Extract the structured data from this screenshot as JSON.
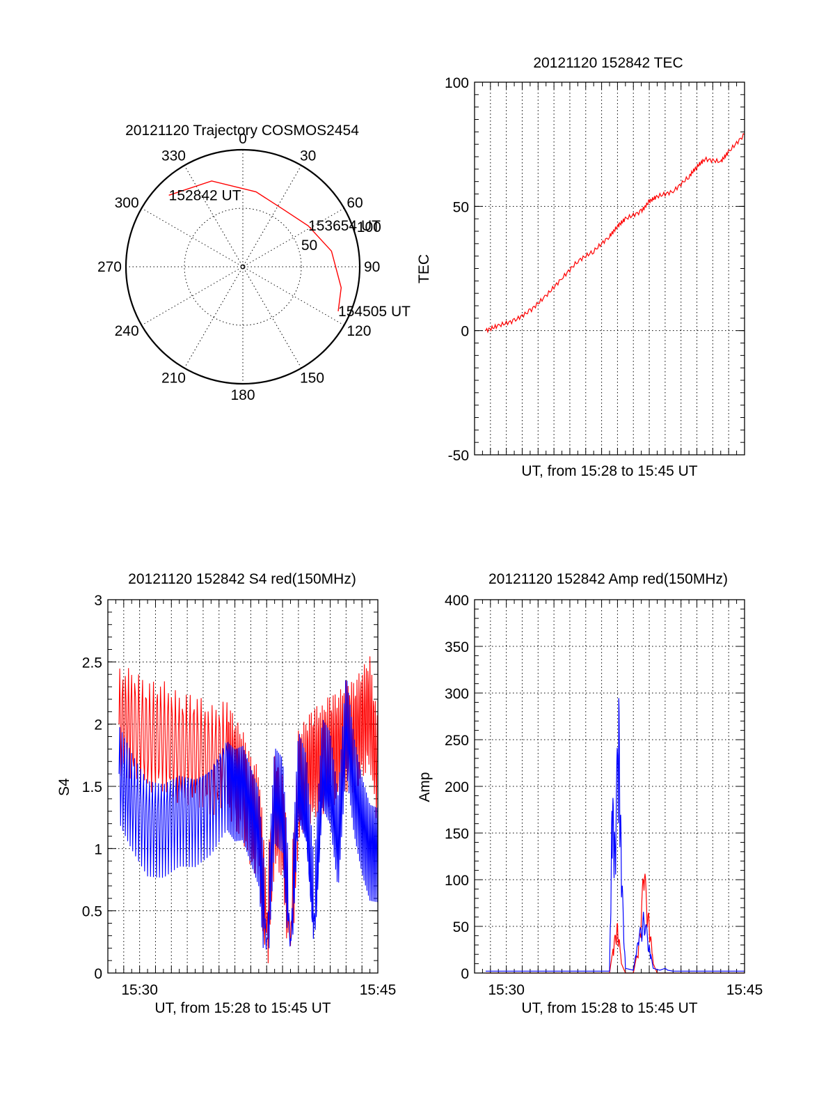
{
  "colors": {
    "red": "#ff0000",
    "blue": "#0000ff",
    "axis": "#000000"
  },
  "chart_data": [
    {
      "type": "polar",
      "title": "20121120 Trajectory COSMOS2454",
      "azimuth_labels": [
        "0",
        "30",
        "60",
        "90",
        "120",
        "150",
        "180",
        "210",
        "240",
        "270",
        "300",
        "330"
      ],
      "radial_labels": [
        "50",
        "100"
      ],
      "rlim": [
        0,
        100
      ],
      "series": [
        {
          "color": "red",
          "points": [
            {
              "az": 314,
              "r": 88
            },
            {
              "az": 340,
              "r": 78
            },
            {
              "az": 10,
              "r": 65
            },
            {
              "az": 35,
              "r": 60
            },
            {
              "az": 58,
              "r": 66
            },
            {
              "az": 80,
              "r": 77
            },
            {
              "az": 102,
              "r": 86
            },
            {
              "az": 115,
              "r": 90
            }
          ]
        }
      ],
      "annotations": [
        {
          "text": "152842 UT",
          "az": 314,
          "r": 88
        },
        {
          "text": "153654 UT",
          "az": 58,
          "r": 66
        },
        {
          "text": "154505 UT",
          "az": 115,
          "r": 90
        }
      ]
    },
    {
      "type": "line",
      "title": "20121120 152842 TEC",
      "xlabel": "UT, from 15:28 to 15:45 UT",
      "ylabel": "TEC",
      "xlim": [
        "15:28:00",
        "15:45:00"
      ],
      "ylim": [
        -50,
        100
      ],
      "y_ticks": [
        "100",
        "50",
        "0",
        "-50"
      ],
      "grid": true,
      "series": [
        {
          "color": "red",
          "x": [
            "15:28:42",
            "15:29:30",
            "15:30:30",
            "15:31:30",
            "15:32:30",
            "15:33:30",
            "15:34:30",
            "15:35:30",
            "15:36:30",
            "15:37:00",
            "15:37:30",
            "15:38:30",
            "15:39:00",
            "15:39:30",
            "15:40:30",
            "15:41:30",
            "15:42:00",
            "15:42:30",
            "15:43:30",
            "15:44:00",
            "15:45:00"
          ],
          "y": [
            0,
            2,
            4,
            8,
            14,
            21,
            28,
            32,
            38,
            42,
            45,
            48,
            52,
            54,
            56,
            62,
            66,
            69,
            68,
            72,
            79
          ]
        }
      ]
    },
    {
      "type": "line",
      "title": "20121120 152842 S4 red(150MHz)",
      "xlabel": "UT, from 15:28 to 15:45 UT",
      "ylabel": "S4",
      "xlim": [
        "15:28:00",
        "15:45:00"
      ],
      "ylim": [
        0,
        3
      ],
      "x_ticks": [
        "15:30",
        "15:45"
      ],
      "y_ticks": [
        "3",
        "2.5",
        "2",
        "1.5",
        "1",
        "0.5",
        "0"
      ],
      "grid": true,
      "series": [
        {
          "color": "red",
          "x": [
            "15:28:42",
            "15:29:30",
            "15:30:30",
            "15:31:30",
            "15:32:30",
            "15:33:30",
            "15:34:30",
            "15:35:30",
            "15:36:00",
            "15:36:30",
            "15:37:00",
            "15:37:30",
            "15:38:00",
            "15:38:30",
            "15:39:00",
            "15:39:30",
            "15:40:00",
            "15:40:30",
            "15:41:00",
            "15:41:30",
            "15:42:00",
            "15:42:30",
            "15:43:00",
            "15:43:30",
            "15:44:00",
            "15:44:30",
            "15:45:00"
          ],
          "y": [
            2.0,
            2.0,
            1.9,
            1.9,
            1.8,
            1.8,
            1.7,
            1.75,
            1.6,
            1.5,
            1.3,
            1.2,
            0.35,
            1.3,
            1.2,
            0.25,
            1.5,
            1.6,
            1.7,
            1.7,
            1.8,
            1.8,
            1.9,
            1.9,
            2.0,
            2.1,
            1.6
          ]
        },
        {
          "color": "blue",
          "x": [
            "15:28:42",
            "15:29:30",
            "15:30:30",
            "15:31:30",
            "15:32:30",
            "15:33:30",
            "15:34:30",
            "15:35:30",
            "15:36:00",
            "15:36:30",
            "15:37:00",
            "15:37:30",
            "15:38:00",
            "15:38:30",
            "15:39:00",
            "15:39:30",
            "15:40:00",
            "15:40:30",
            "15:41:00",
            "15:41:30",
            "15:42:00",
            "15:42:30",
            "15:43:00",
            "15:43:30",
            "15:44:00",
            "15:44:30",
            "15:45:00"
          ],
          "y": [
            1.6,
            1.4,
            1.2,
            1.2,
            1.3,
            1.3,
            1.4,
            1.6,
            1.5,
            1.5,
            1.3,
            1.1,
            0.2,
            1.4,
            1.3,
            0.2,
            1.5,
            1.3,
            0.4,
            1.6,
            1.5,
            1.0,
            2.0,
            1.5,
            1.2,
            1.0,
            1.0
          ]
        }
      ]
    },
    {
      "type": "line",
      "title": "20121120 152842 Amp red(150MHz)",
      "xlabel": "UT, from 15:28 to 15:45 UT",
      "ylabel": "Amp",
      "xlim": [
        "15:28:00",
        "15:45:00"
      ],
      "ylim": [
        0,
        400
      ],
      "x_ticks": [
        "15:30",
        "15:45"
      ],
      "y_ticks": [
        "400",
        "350",
        "300",
        "250",
        "200",
        "150",
        "100",
        "50",
        "0"
      ],
      "grid": true,
      "series": [
        {
          "color": "red",
          "x": [
            "15:28:42",
            "15:36:00",
            "15:36:30",
            "15:36:45",
            "15:37:00",
            "15:37:15",
            "15:37:30",
            "15:38:00",
            "15:38:20",
            "15:38:40",
            "15:39:00",
            "15:39:15",
            "15:39:30",
            "15:40:00",
            "15:45:00"
          ],
          "y": [
            0,
            0,
            0,
            30,
            60,
            10,
            0,
            0,
            30,
            120,
            60,
            10,
            0,
            0,
            0
          ]
        },
        {
          "color": "blue",
          "x": [
            "15:28:42",
            "15:36:00",
            "15:36:30",
            "15:36:40",
            "15:36:50",
            "15:37:05",
            "15:37:15",
            "15:37:30",
            "15:38:00",
            "15:38:20",
            "15:38:40",
            "15:39:00",
            "15:39:15",
            "15:39:40",
            "15:40:00",
            "15:40:10",
            "15:40:30",
            "15:45:00"
          ],
          "y": [
            2,
            2,
            2,
            200,
            160,
            300,
            120,
            5,
            3,
            40,
            70,
            30,
            5,
            3,
            5,
            3,
            2,
            2
          ]
        }
      ]
    }
  ]
}
